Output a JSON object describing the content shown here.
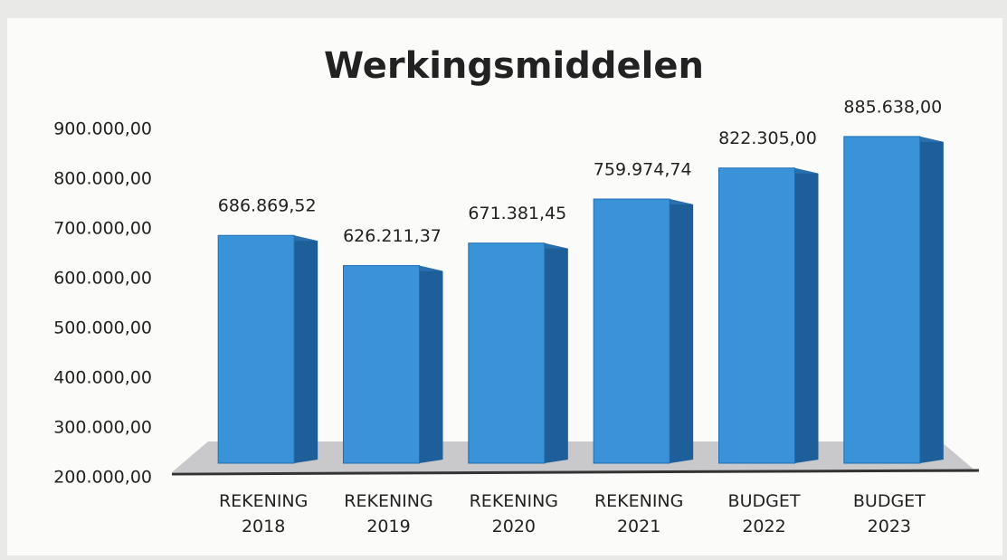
{
  "chart_data": {
    "type": "bar",
    "title": "Werkingsmiddelen",
    "categories": [
      "REKENING 2018",
      "REKENING 2019",
      "REKENING 2020",
      "REKENING 2021",
      "BUDGET 2022",
      "BUDGET 2023"
    ],
    "values": [
      686869.52,
      626211.37,
      671381.45,
      759974.74,
      822305,
      885638
    ],
    "value_labels": [
      "686.869,52",
      "626.211,37",
      "671.381,45",
      "759.974,74",
      "822.305,00",
      "885.638,00"
    ],
    "color": "#3a93d6",
    "ylim": [
      200000,
      900000
    ],
    "yticks": [
      {
        "value": 200000,
        "label": "200.000,00"
      },
      {
        "value": 300000,
        "label": "300.000,00"
      },
      {
        "value": 400000,
        "label": "400.000,00"
      },
      {
        "value": 500000,
        "label": "500.000,00"
      },
      {
        "value": 600000,
        "label": "600.000,00"
      },
      {
        "value": 700000,
        "label": "700.000,00"
      },
      {
        "value": 800000,
        "label": "800.000,00"
      },
      {
        "value": 900000,
        "label": "900.000,00"
      }
    ],
    "grid": false
  }
}
